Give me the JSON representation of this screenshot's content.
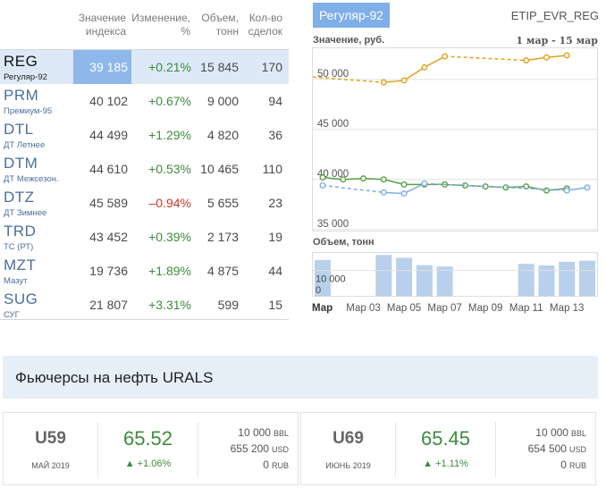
{
  "table": {
    "headers": [
      {
        "line1": "Значение",
        "line2": "индекса"
      },
      {
        "line1": "Изменение,",
        "line2": "%"
      },
      {
        "line1": "Объем,",
        "line2": "тонн"
      },
      {
        "line1": "Кол-во",
        "line2": "сделок"
      }
    ],
    "rows": [
      {
        "ticker": "REG",
        "name": "Регуляр-92",
        "index": "39 185",
        "change": "+0.21%",
        "volume": "15 845",
        "deals": "170"
      },
      {
        "ticker": "PRM",
        "name": "Премиум-95",
        "index": "40 102",
        "change": "+0.67%",
        "volume": "9 000",
        "deals": "94"
      },
      {
        "ticker": "DTL",
        "name": "ДТ Летнее",
        "index": "44 499",
        "change": "+1.29%",
        "volume": "4 820",
        "deals": "36"
      },
      {
        "ticker": "DTM",
        "name": "ДТ Межсезон.",
        "index": "44 610",
        "change": "+0.53%",
        "volume": "10 465",
        "deals": "110"
      },
      {
        "ticker": "DTZ",
        "name": "ДТ Зимнее",
        "index": "45 589",
        "change": "–0.94%",
        "volume": "5 655",
        "deals": "23"
      },
      {
        "ticker": "TRD",
        "name": "ТС (РТ)",
        "index": "43 452",
        "change": "+0.39%",
        "volume": "2 173",
        "deals": "19"
      },
      {
        "ticker": "MZT",
        "name": "Мазут",
        "index": "19 736",
        "change": "+1.89%",
        "volume": "4 875",
        "deals": "44"
      },
      {
        "ticker": "SUG",
        "name": "СУГ",
        "index": "21 807",
        "change": "+3.31%",
        "volume": "599",
        "deals": "15"
      }
    ]
  },
  "chart_panel": {
    "badge": "Регуляр-92",
    "code": "ETIP_EVR_REG",
    "value_label": "Значение, руб.",
    "date_range": "1 мар - 15 мар",
    "volume_label": "Объем, тонн"
  },
  "chart_data": {
    "type": "line",
    "x": [
      "1 мар",
      "2 мар",
      "3 мар",
      "4 мар",
      "5 мар",
      "6 мар",
      "7 мар",
      "8 мар",
      "9 мар",
      "10 мар",
      "11 мар",
      "12 мар",
      "13 мар",
      "14 мар"
    ],
    "x_tick_labels": [
      "Мар",
      "Мар 03",
      "Мар 05",
      "Мар 07",
      "Мар 09",
      "Мар 11",
      "Мар 13"
    ],
    "y_tick_labels": [
      "35 000",
      "40 000",
      "45 000",
      "50 000"
    ],
    "ylim": [
      34800,
      53200
    ],
    "series": [
      {
        "color": "#e0a21a",
        "values": [
          null,
          null,
          null,
          49700,
          49900,
          51200,
          52300,
          null,
          null,
          null,
          51900,
          52200,
          52400,
          null
        ]
      },
      {
        "color": "#5aa046",
        "values": [
          40200,
          40000,
          40100,
          40000,
          39500,
          39500,
          39500,
          39400,
          39300,
          39200,
          39300,
          38900,
          39100,
          null
        ]
      },
      {
        "color": "#7faee8",
        "values": [
          39400,
          null,
          null,
          38700,
          38600,
          39600,
          null,
          null,
          null,
          null,
          null,
          null,
          38900,
          39200
        ]
      }
    ],
    "volume": {
      "y_tick_labels": [
        "0",
        "10 000"
      ],
      "ylim": [
        0,
        17000
      ],
      "color": "#b8d0eb",
      "values": [
        14000,
        null,
        null,
        15900,
        14800,
        12000,
        11500,
        null,
        null,
        null,
        12500,
        11900,
        13300,
        13700
      ]
    }
  },
  "futures": {
    "title": "Фьючерсы на нефть URALS",
    "cards": [
      {
        "ticker": "U59",
        "month": "МАЙ 2019",
        "price": "65.52",
        "change": "▲ +1.06%",
        "vol_bbl": "10 000",
        "unit_bbl": "BBL",
        "vol_usd": "655 200",
        "unit_usd": "USD",
        "vol_rub": "0",
        "unit_rub": "RUB"
      },
      {
        "ticker": "U69",
        "month": "ИЮНЬ 2019",
        "price": "65.45",
        "change": "▲ +1.11%",
        "vol_bbl": "10 000",
        "unit_bbl": "BBL",
        "vol_usd": "654 500",
        "unit_usd": "USD",
        "vol_rub": "0",
        "unit_rub": "RUB"
      }
    ]
  }
}
